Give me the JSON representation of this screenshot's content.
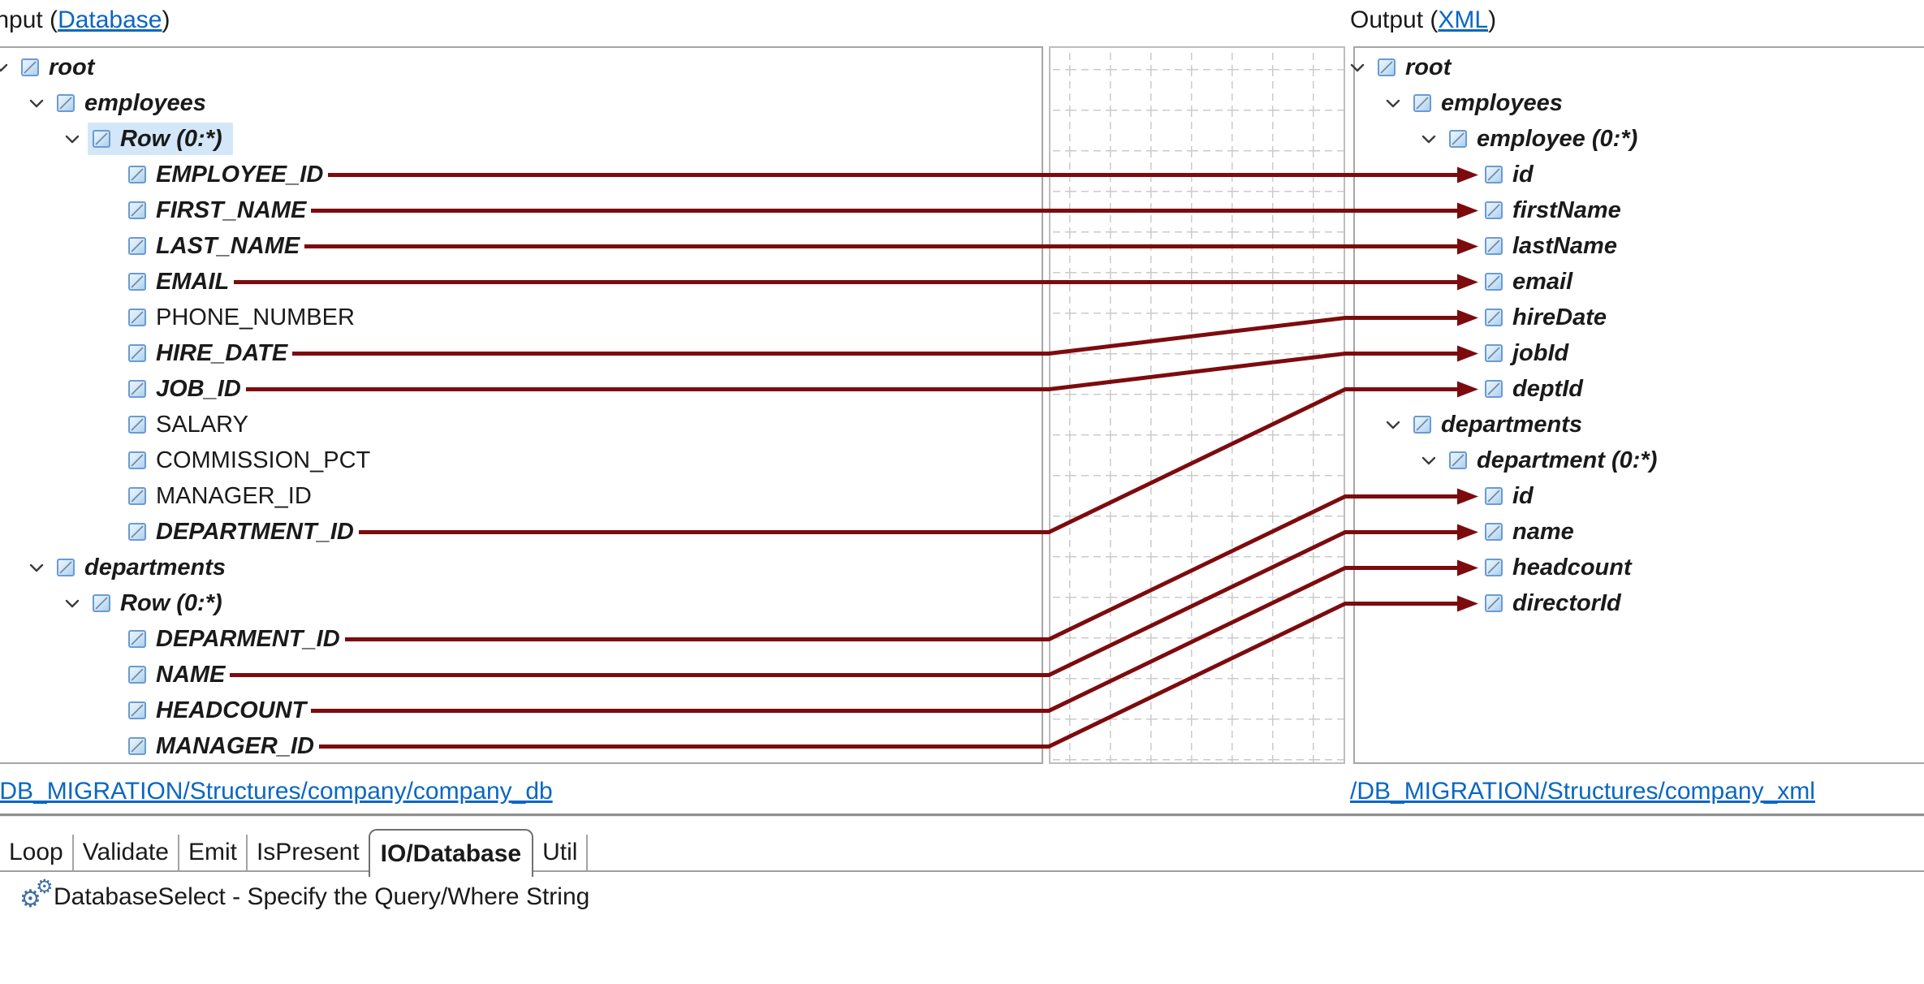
{
  "colors": {
    "wire": "#7d0b0e",
    "link": "#0967c2",
    "selected_row_highlight": "#d3e7f8",
    "node_icon_blue": "#6b9bd2",
    "grid_line": "#cbcbcb",
    "panel_border": "#a6a6a6"
  },
  "input_panel": {
    "title_prefix": "Input (",
    "title_link": "Database",
    "title_suffix": ")",
    "footer_link": "/DB_MIGRATION/Structures/company/company_db",
    "nodes": [
      {
        "label": "root",
        "depth": 0,
        "chevron": true,
        "mapped": true,
        "selected": false
      },
      {
        "label": "employees",
        "depth": 1,
        "chevron": true,
        "mapped": true,
        "selected": false
      },
      {
        "label": "Row (0:*)",
        "depth": 2,
        "chevron": true,
        "mapped": true,
        "selected": true
      },
      {
        "label": "EMPLOYEE_ID",
        "depth": 3,
        "chevron": false,
        "mapped": true,
        "selected": false
      },
      {
        "label": "FIRST_NAME",
        "depth": 3,
        "chevron": false,
        "mapped": true,
        "selected": false
      },
      {
        "label": "LAST_NAME",
        "depth": 3,
        "chevron": false,
        "mapped": true,
        "selected": false
      },
      {
        "label": "EMAIL",
        "depth": 3,
        "chevron": false,
        "mapped": true,
        "selected": false
      },
      {
        "label": "PHONE_NUMBER",
        "depth": 3,
        "chevron": false,
        "mapped": false,
        "selected": false
      },
      {
        "label": "HIRE_DATE",
        "depth": 3,
        "chevron": false,
        "mapped": true,
        "selected": false
      },
      {
        "label": "JOB_ID",
        "depth": 3,
        "chevron": false,
        "mapped": true,
        "selected": false
      },
      {
        "label": "SALARY",
        "depth": 3,
        "chevron": false,
        "mapped": false,
        "selected": false
      },
      {
        "label": "COMMISSION_PCT",
        "depth": 3,
        "chevron": false,
        "mapped": false,
        "selected": false
      },
      {
        "label": "MANAGER_ID",
        "depth": 3,
        "chevron": false,
        "mapped": false,
        "selected": false
      },
      {
        "label": "DEPARTMENT_ID",
        "depth": 3,
        "chevron": false,
        "mapped": true,
        "selected": false
      },
      {
        "label": "departments",
        "depth": 1,
        "chevron": true,
        "mapped": true,
        "selected": false
      },
      {
        "label": "Row (0:*)",
        "depth": 2,
        "chevron": true,
        "mapped": true,
        "selected": false
      },
      {
        "label": "DEPARMENT_ID",
        "depth": 3,
        "chevron": false,
        "mapped": true,
        "selected": false
      },
      {
        "label": "NAME",
        "depth": 3,
        "chevron": false,
        "mapped": true,
        "selected": false
      },
      {
        "label": "HEADCOUNT",
        "depth": 3,
        "chevron": false,
        "mapped": true,
        "selected": false
      },
      {
        "label": "MANAGER_ID",
        "depth": 3,
        "chevron": false,
        "mapped": true,
        "selected": false
      }
    ]
  },
  "output_panel": {
    "title_prefix": "Output (",
    "title_link": "XML",
    "title_suffix": ")",
    "footer_link": "/DB_MIGRATION/Structures/company_xml",
    "nodes": [
      {
        "label": "root",
        "depth": 0,
        "chevron": true,
        "mapped": true,
        "selected": false
      },
      {
        "label": "employees",
        "depth": 1,
        "chevron": true,
        "mapped": true,
        "selected": false
      },
      {
        "label": "employee (0:*)",
        "depth": 2,
        "chevron": true,
        "mapped": true,
        "selected": false
      },
      {
        "label": "id",
        "depth": 3,
        "chevron": false,
        "mapped": true,
        "selected": false
      },
      {
        "label": "firstName",
        "depth": 3,
        "chevron": false,
        "mapped": true,
        "selected": false
      },
      {
        "label": "lastName",
        "depth": 3,
        "chevron": false,
        "mapped": true,
        "selected": false
      },
      {
        "label": "email",
        "depth": 3,
        "chevron": false,
        "mapped": true,
        "selected": false
      },
      {
        "label": "hireDate",
        "depth": 3,
        "chevron": false,
        "mapped": true,
        "selected": false
      },
      {
        "label": "jobId",
        "depth": 3,
        "chevron": false,
        "mapped": true,
        "selected": false
      },
      {
        "label": "deptId",
        "depth": 3,
        "chevron": false,
        "mapped": true,
        "selected": false
      },
      {
        "label": "departments",
        "depth": 1,
        "chevron": true,
        "mapped": true,
        "selected": false
      },
      {
        "label": "department (0:*)",
        "depth": 2,
        "chevron": true,
        "mapped": true,
        "selected": false
      },
      {
        "label": "id",
        "depth": 3,
        "chevron": false,
        "mapped": true,
        "selected": false
      },
      {
        "label": "name",
        "depth": 3,
        "chevron": false,
        "mapped": true,
        "selected": false
      },
      {
        "label": "headcount",
        "depth": 3,
        "chevron": false,
        "mapped": true,
        "selected": false
      },
      {
        "label": "directorId",
        "depth": 3,
        "chevron": false,
        "mapped": true,
        "selected": false
      }
    ]
  },
  "mappings": [
    {
      "from": 3,
      "to": 3,
      "from_label": "EMPLOYEE_ID",
      "to_label": "id"
    },
    {
      "from": 4,
      "to": 4,
      "from_label": "FIRST_NAME",
      "to_label": "firstName"
    },
    {
      "from": 5,
      "to": 5,
      "from_label": "LAST_NAME",
      "to_label": "lastName"
    },
    {
      "from": 6,
      "to": 6,
      "from_label": "EMAIL",
      "to_label": "email"
    },
    {
      "from": 8,
      "to": 7,
      "from_label": "HIRE_DATE",
      "to_label": "hireDate"
    },
    {
      "from": 9,
      "to": 8,
      "from_label": "JOB_ID",
      "to_label": "jobId"
    },
    {
      "from": 13,
      "to": 9,
      "from_label": "DEPARTMENT_ID",
      "to_label": "deptId"
    },
    {
      "from": 16,
      "to": 12,
      "from_label": "DEPARMENT_ID",
      "to_label": "id"
    },
    {
      "from": 17,
      "to": 13,
      "from_label": "NAME",
      "to_label": "name"
    },
    {
      "from": 18,
      "to": 14,
      "from_label": "HEADCOUNT",
      "to_label": "headcount"
    },
    {
      "from": 19,
      "to": 15,
      "from_label": "MANAGER_ID",
      "to_label": "directorId"
    }
  ],
  "tabs": {
    "items": [
      "Loop",
      "Validate",
      "Emit",
      "IsPresent",
      "IO/Database",
      "Util"
    ],
    "selected": "IO/Database"
  },
  "status": {
    "icon": "gears-icon",
    "text": "DatabaseSelect - Specify the Query/Where String"
  }
}
